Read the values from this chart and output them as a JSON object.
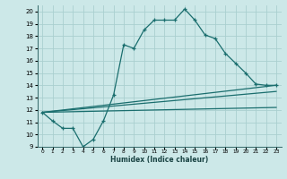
{
  "xlabel": "Humidex (Indice chaleur)",
  "background_color": "#cce8e8",
  "grid_color": "#aacfcf",
  "line_color": "#1a6e6e",
  "xlim": [
    -0.5,
    23.5
  ],
  "ylim": [
    9,
    20.5
  ],
  "xticks": [
    0,
    1,
    2,
    3,
    4,
    5,
    6,
    7,
    8,
    9,
    10,
    11,
    12,
    13,
    14,
    15,
    16,
    17,
    18,
    19,
    20,
    21,
    22,
    23
  ],
  "yticks": [
    9,
    10,
    11,
    12,
    13,
    14,
    15,
    16,
    17,
    18,
    19,
    20
  ],
  "line1_x": [
    0,
    1,
    2,
    3,
    4,
    5,
    6,
    7,
    8,
    9,
    10,
    11,
    12,
    13,
    14,
    15,
    16,
    17,
    18,
    19,
    20,
    21,
    22,
    23
  ],
  "line1_y": [
    11.8,
    11.1,
    10.5,
    10.5,
    9.0,
    9.6,
    11.1,
    13.2,
    17.3,
    17.0,
    18.5,
    19.3,
    19.3,
    19.3,
    20.2,
    19.3,
    18.1,
    17.8,
    16.6,
    15.8,
    15.0,
    14.1,
    14.0,
    14.0
  ],
  "line2_x": [
    0,
    23
  ],
  "line2_y": [
    11.8,
    14.0
  ],
  "line3_x": [
    0,
    23
  ],
  "line3_y": [
    11.8,
    13.5
  ],
  "line4_x": [
    0,
    23
  ],
  "line4_y": [
    11.8,
    12.2
  ]
}
